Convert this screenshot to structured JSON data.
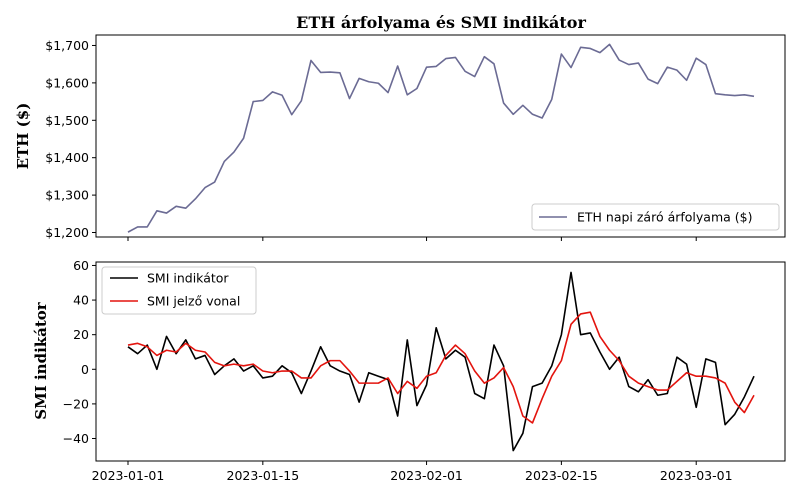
{
  "chart_data": {
    "type": "line",
    "title": "ETH árfolyama és SMI indikátor",
    "x": [
      "2023-01-01",
      "2023-01-02",
      "2023-01-03",
      "2023-01-04",
      "2023-01-05",
      "2023-01-06",
      "2023-01-07",
      "2023-01-08",
      "2023-01-09",
      "2023-01-10",
      "2023-01-11",
      "2023-01-12",
      "2023-01-13",
      "2023-01-14",
      "2023-01-15",
      "2023-01-16",
      "2023-01-17",
      "2023-01-18",
      "2023-01-19",
      "2023-01-20",
      "2023-01-21",
      "2023-01-22",
      "2023-01-23",
      "2023-01-24",
      "2023-01-25",
      "2023-01-26",
      "2023-01-27",
      "2023-01-28",
      "2023-01-29",
      "2023-01-30",
      "2023-01-31",
      "2023-02-01",
      "2023-02-02",
      "2023-02-03",
      "2023-02-04",
      "2023-02-05",
      "2023-02-06",
      "2023-02-07",
      "2023-02-08",
      "2023-02-09",
      "2023-02-10",
      "2023-02-11",
      "2023-02-12",
      "2023-02-13",
      "2023-02-14",
      "2023-02-15",
      "2023-02-16",
      "2023-02-17",
      "2023-02-18",
      "2023-02-19",
      "2023-02-20",
      "2023-02-21",
      "2023-02-22",
      "2023-02-23",
      "2023-02-24",
      "2023-02-25",
      "2023-02-26",
      "2023-02-27",
      "2023-02-28",
      "2023-03-01",
      "2023-03-02",
      "2023-03-03",
      "2023-03-04",
      "2023-03-05",
      "2023-03-06",
      "2023-03-07"
    ],
    "x_ticks": [
      "2023-01-01",
      "2023-01-15",
      "2023-02-01",
      "2023-02-15",
      "2023-03-01"
    ],
    "panels": [
      {
        "ylabel": "ETH ($)",
        "ylim": [
          1188,
          1728
        ],
        "y_ticks": [
          1200,
          1300,
          1400,
          1500,
          1600,
          1700
        ],
        "y_tick_labels": [
          "$1,200",
          "$1,300",
          "$1,400",
          "$1,500",
          "$1,600",
          "$1,700"
        ],
        "legend_position": "lower-right",
        "series": [
          {
            "name": "ETH napi záró árfolyama ($)",
            "color": "#6b6b94",
            "values": [
              1201,
              1215,
              1215,
              1258,
              1252,
              1270,
              1265,
              1290,
              1320,
              1335,
              1390,
              1415,
              1452,
              1550,
              1553,
              1576,
              1567,
              1515,
              1552,
              1660,
              1628,
              1629,
              1627,
              1558,
              1612,
              1603,
              1599,
              1574,
              1645,
              1568,
              1585,
              1642,
              1644,
              1665,
              1668,
              1631,
              1617,
              1670,
              1651,
              1546,
              1516,
              1540,
              1516,
              1506,
              1556,
              1677,
              1641,
              1695,
              1692,
              1681,
              1703,
              1661,
              1649,
              1653,
              1610,
              1598,
              1642,
              1634,
              1607,
              1666,
              1649,
              1571,
              1568,
              1566,
              1568,
              1564
            ]
          }
        ]
      },
      {
        "ylabel": "SMI indikátor",
        "ylim": [
          -53,
          62
        ],
        "y_ticks": [
          -40,
          -20,
          0,
          20,
          40,
          60
        ],
        "y_tick_labels": [
          "−40",
          "−20",
          "0",
          "20",
          "40",
          "60"
        ],
        "legend_position": "upper-left",
        "series": [
          {
            "name": "SMI indikátor",
            "color": "#000000",
            "values": [
              13,
              9,
              14,
              0,
              19,
              9,
              17,
              6,
              8,
              -3,
              2,
              6,
              -1,
              2,
              -5,
              -4,
              2,
              -2,
              -14,
              -1,
              13,
              2,
              -1,
              -3,
              -19,
              -2,
              -4,
              -6,
              -27,
              17,
              -21,
              -9,
              24,
              6,
              11,
              7,
              -14,
              -17,
              14,
              2,
              -47,
              -37,
              -10,
              -8,
              2,
              20,
              56,
              20,
              21,
              10,
              0,
              7,
              -10,
              -13,
              -6,
              -15,
              -14,
              7,
              3,
              -22,
              6,
              4,
              -32,
              -26,
              -16,
              -4
            ]
          },
          {
            "name": "SMI jelző vonal",
            "color": "#e3140e",
            "values": [
              14,
              15,
              13,
              8,
              11,
              10,
              15,
              11,
              10,
              4,
              2,
              3,
              2,
              3,
              -1,
              -2,
              -1,
              -1,
              -5,
              -5,
              2,
              5,
              5,
              -1,
              -8,
              -8,
              -8,
              -5,
              -14,
              -7,
              -11,
              -4,
              -2,
              8,
              14,
              9,
              -1,
              -8,
              -5,
              1,
              -10,
              -27,
              -31,
              -17,
              -4,
              5,
              26,
              32,
              33,
              19,
              11,
              5,
              -4,
              -8,
              -10,
              -12,
              -12,
              -7,
              -2,
              -4,
              -4,
              -5,
              -8,
              -19,
              -25,
              -15
            ]
          }
        ]
      }
    ]
  }
}
